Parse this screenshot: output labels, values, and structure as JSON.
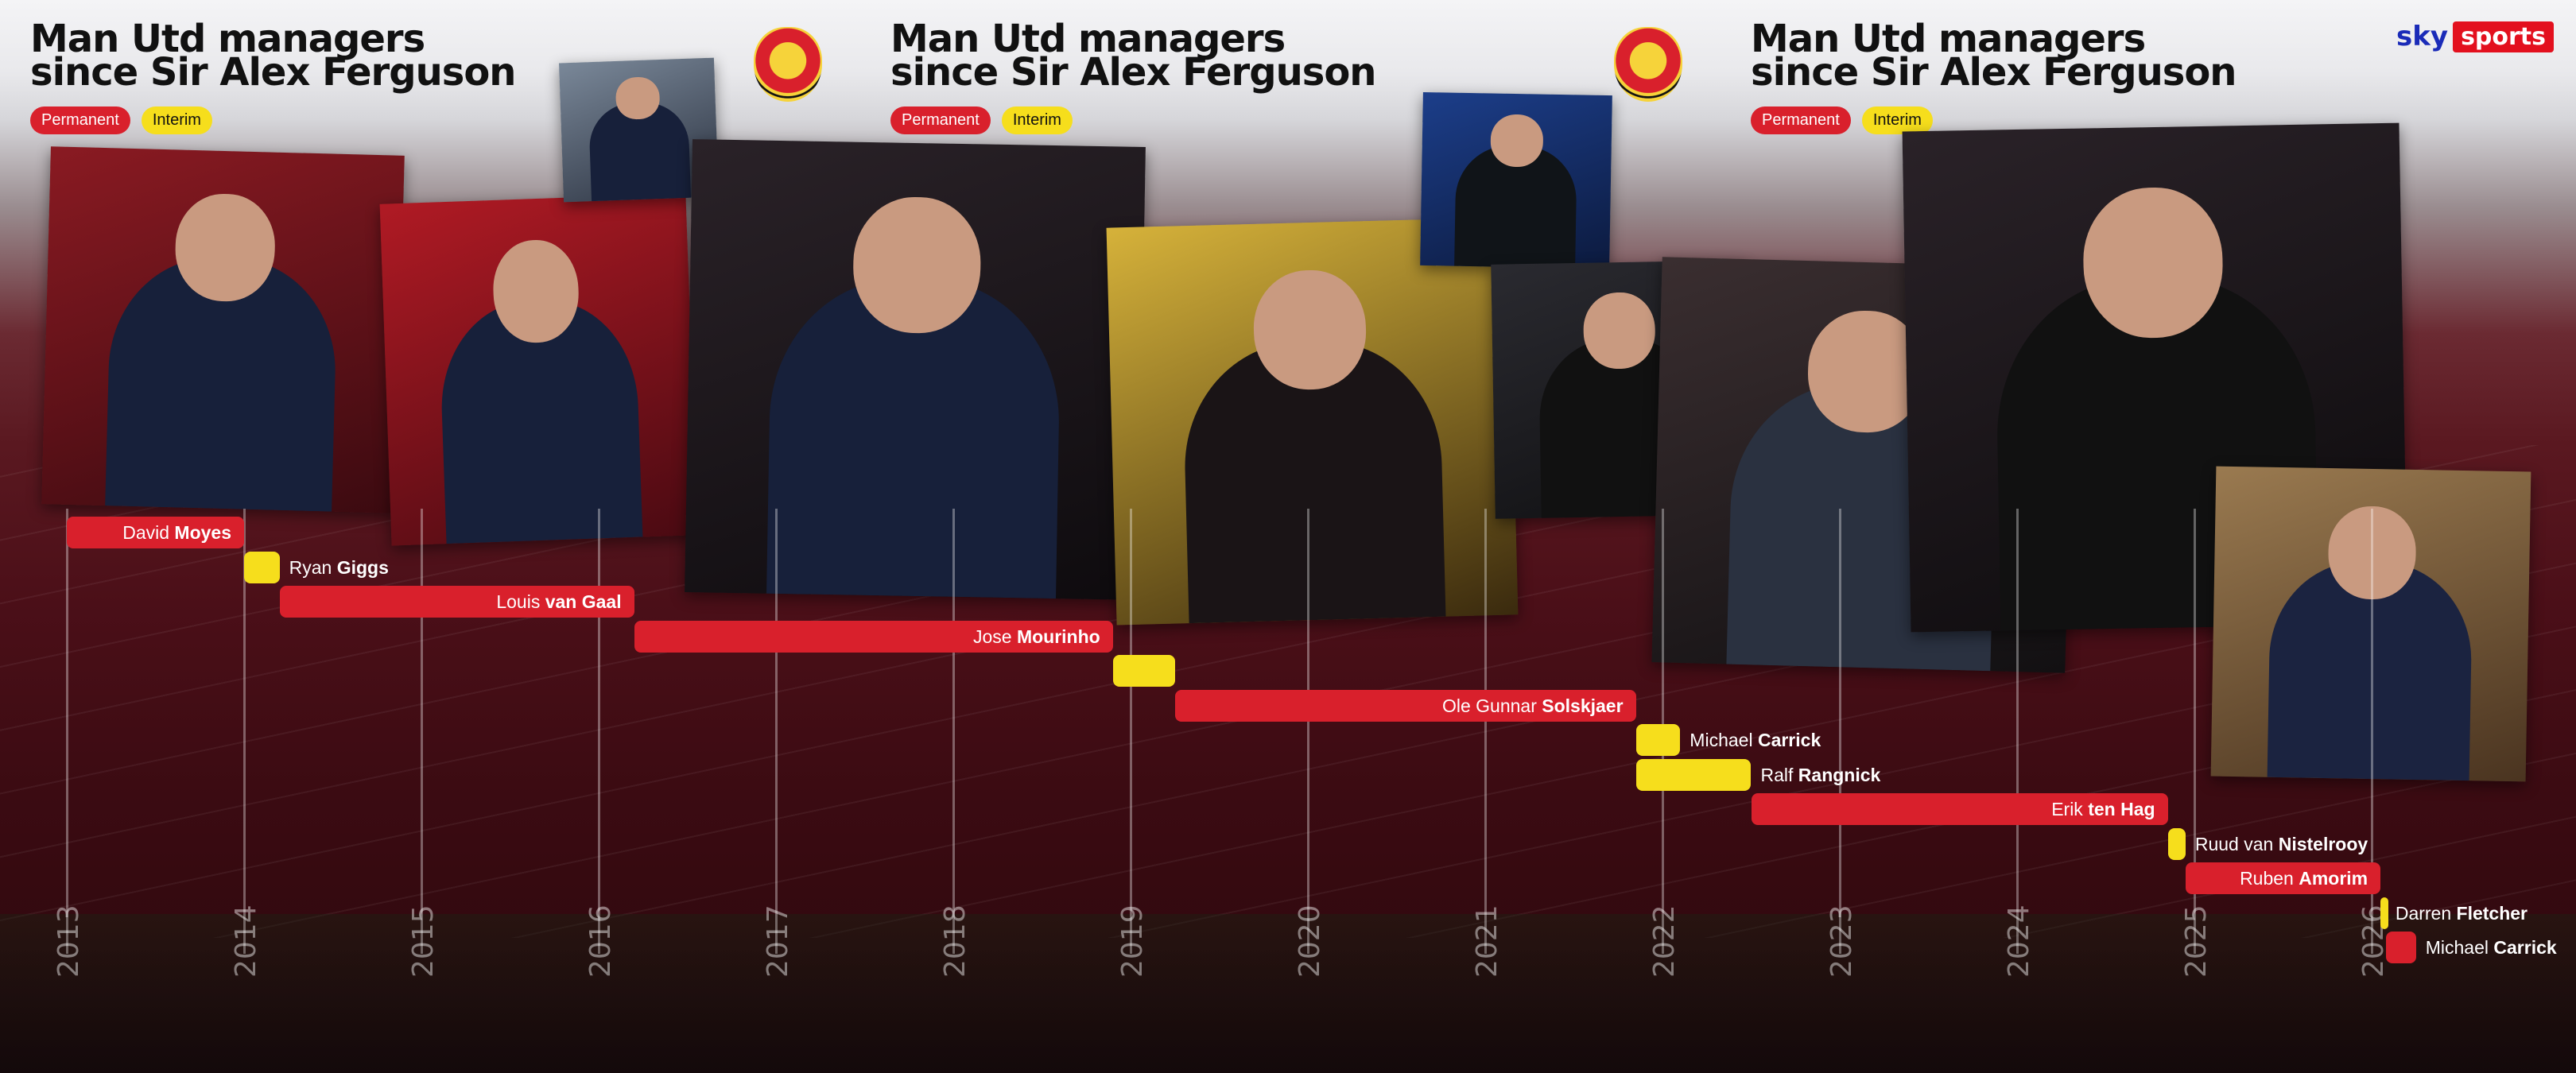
{
  "header": {
    "title_line1": "Man Utd managers",
    "title_line2": "since Sir Alex Ferguson",
    "legend_permanent": "Permanent",
    "legend_interim": "Interim"
  },
  "brand": {
    "sky": "sky",
    "sports": "sports"
  },
  "colors": {
    "permanent": "#d9202c",
    "interim": "#f6de1c"
  },
  "axis": {
    "years": [
      "2013",
      "2014",
      "2015",
      "2016",
      "2017",
      "2018",
      "2019",
      "2020",
      "2021",
      "2022",
      "2023",
      "2024",
      "2025",
      "2026"
    ]
  },
  "managers": [
    {
      "first": "David",
      "last": "Moyes",
      "kind": "permanent",
      "start": 2013.0,
      "end": 2014.0
    },
    {
      "first": "Ryan",
      "last": "Giggs",
      "kind": "interim",
      "start": 2014.0,
      "end": 2014.2
    },
    {
      "first": "Louis",
      "last": "van Gaal",
      "kind": "permanent",
      "start": 2014.2,
      "end": 2016.2
    },
    {
      "first": "Jose",
      "last": "Mourinho",
      "kind": "permanent",
      "start": 2016.2,
      "end": 2018.9
    },
    {
      "first": "",
      "last": "",
      "kind": "interim",
      "start": 2018.9,
      "end": 2019.25
    },
    {
      "first": "Ole Gunnar",
      "last": "Solskjaer",
      "kind": "permanent",
      "start": 2019.25,
      "end": 2021.85
    },
    {
      "first": "Michael",
      "last": "Carrick",
      "kind": "interim",
      "start": 2021.85,
      "end": 2022.1
    },
    {
      "first": "Ralf",
      "last": "Rangnick",
      "kind": "interim",
      "start": 2021.85,
      "end": 2022.5
    },
    {
      "first": "Erik",
      "last": "ten Hag",
      "kind": "permanent",
      "start": 2022.5,
      "end": 2024.85
    },
    {
      "first": "Ruud van",
      "last": "Nistelrooy",
      "kind": "interim",
      "start": 2024.85,
      "end": 2024.95
    },
    {
      "first": "Ruben",
      "last": "Amorim",
      "kind": "permanent",
      "start": 2024.95,
      "end": 2026.05
    },
    {
      "first": "Darren",
      "last": "Fletcher",
      "kind": "interim",
      "start": 2026.05,
      "end": 2026.08
    },
    {
      "first": "Michael",
      "last": "Carrick",
      "kind": "permanent",
      "start": 2026.08,
      "end": 2026.25
    }
  ]
}
